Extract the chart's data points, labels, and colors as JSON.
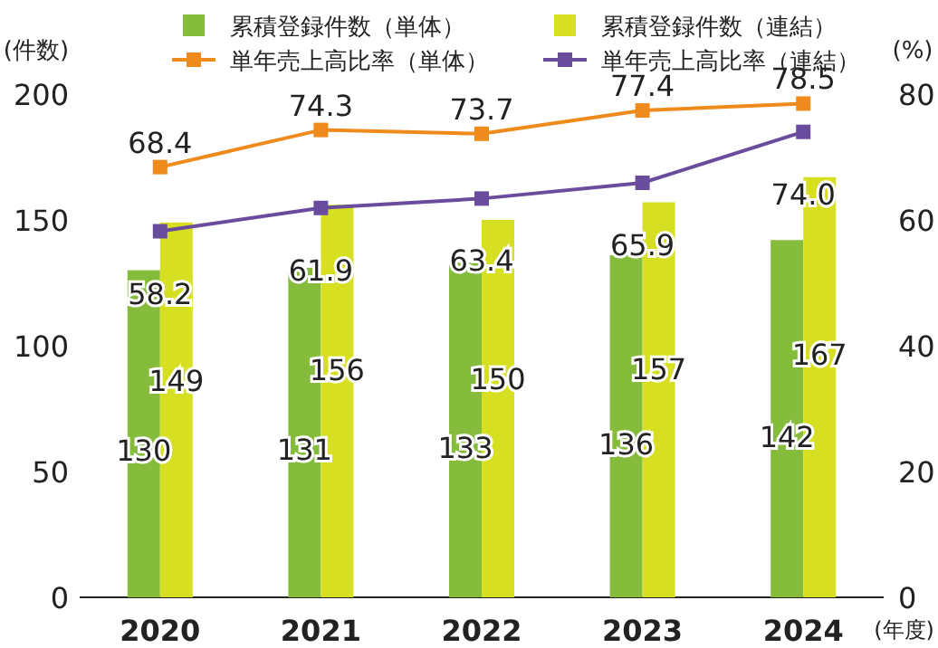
{
  "chart_data": {
    "type": "bar",
    "categories": [
      "2020",
      "2021",
      "2022",
      "2023",
      "2024"
    ],
    "series": [
      {
        "name": "累積登録件数（単体）",
        "color": "#86bc3c",
        "values": [
          130,
          131,
          133,
          136,
          142
        ],
        "value_labels": [
          "130",
          "131",
          "133",
          "136",
          "142"
        ]
      },
      {
        "name": "累積登録件数（連結）",
        "color": "#d7df23",
        "values": [
          149,
          156,
          150,
          157,
          167
        ],
        "value_labels": [
          "149",
          "156",
          "150",
          "157",
          "167"
        ]
      },
      {
        "name": "単年売上高比率（単体）",
        "type": "line",
        "axis": "y2",
        "color": "#ef8a1d",
        "values": [
          68.4,
          74.3,
          73.7,
          77.4,
          78.5
        ],
        "value_labels": [
          "68.4",
          "74.3",
          "73.7",
          "77.4",
          "78.5"
        ]
      },
      {
        "name": "単年売上高比率（連結）",
        "type": "line",
        "axis": "y2",
        "color": "#6a4c9c",
        "values": [
          58.2,
          61.9,
          63.4,
          65.9,
          74.0
        ],
        "value_labels": [
          "58.2",
          "61.9",
          "63.4",
          "65.9",
          "74.0"
        ]
      }
    ],
    "ylabel": "(件数)",
    "y2label": "(%)",
    "xlabel": "(年度)",
    "ylim": [
      0,
      200
    ],
    "yticks": [
      0,
      50,
      100,
      150,
      200
    ],
    "y2lim": [
      0,
      80
    ],
    "y2ticks": [
      0,
      20,
      40,
      60,
      80
    ],
    "legend": "top",
    "marker": "square"
  }
}
